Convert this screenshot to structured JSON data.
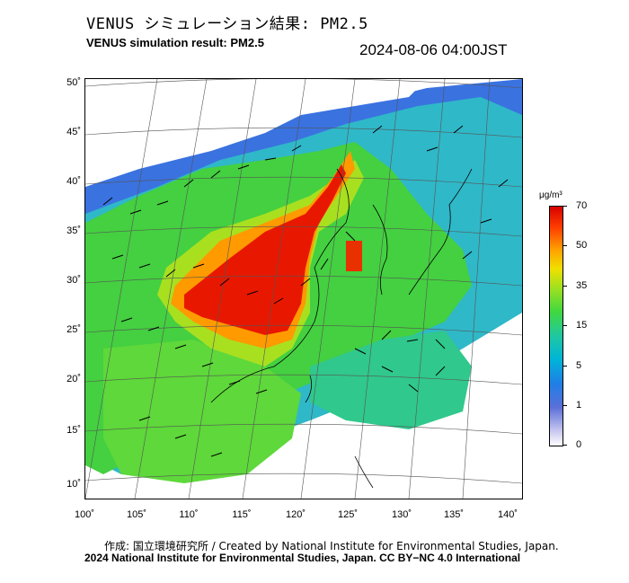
{
  "header": {
    "title_jp": "VENUS シミュレーション結果: PM2.5",
    "title_en": "VENUS simulation result: PM2.5",
    "timestamp": "2024-08-06 04:00JST"
  },
  "map": {
    "lat_ticks": [
      "50˚",
      "45˚",
      "40˚",
      "35˚",
      "30˚",
      "25˚",
      "20˚",
      "15˚",
      "10˚"
    ],
    "lon_ticks": [
      "100˚",
      "105˚",
      "110˚",
      "115˚",
      "120˚",
      "125˚",
      "130˚",
      "135˚",
      "140˚"
    ],
    "lat_range": [
      9,
      51
    ],
    "lon_range": [
      100,
      141
    ]
  },
  "colorbar": {
    "unit": "μg/m³",
    "ticks": [
      "70",
      "50",
      "35",
      "15",
      "5",
      "1",
      "0"
    ],
    "colors": [
      "#ffffff",
      "#5b6fd8",
      "#00b4d8",
      "#40d840",
      "#f0e000",
      "#ffa000",
      "#d80000"
    ]
  },
  "footer": {
    "credit_line1": "作成: 国立環境研究所 / Created by National Institute for Environmental Studies, Japan.",
    "credit_line2": "2024 National Institute for Environmental Studies, Japan. CC BY−NC 4.0 International"
  }
}
